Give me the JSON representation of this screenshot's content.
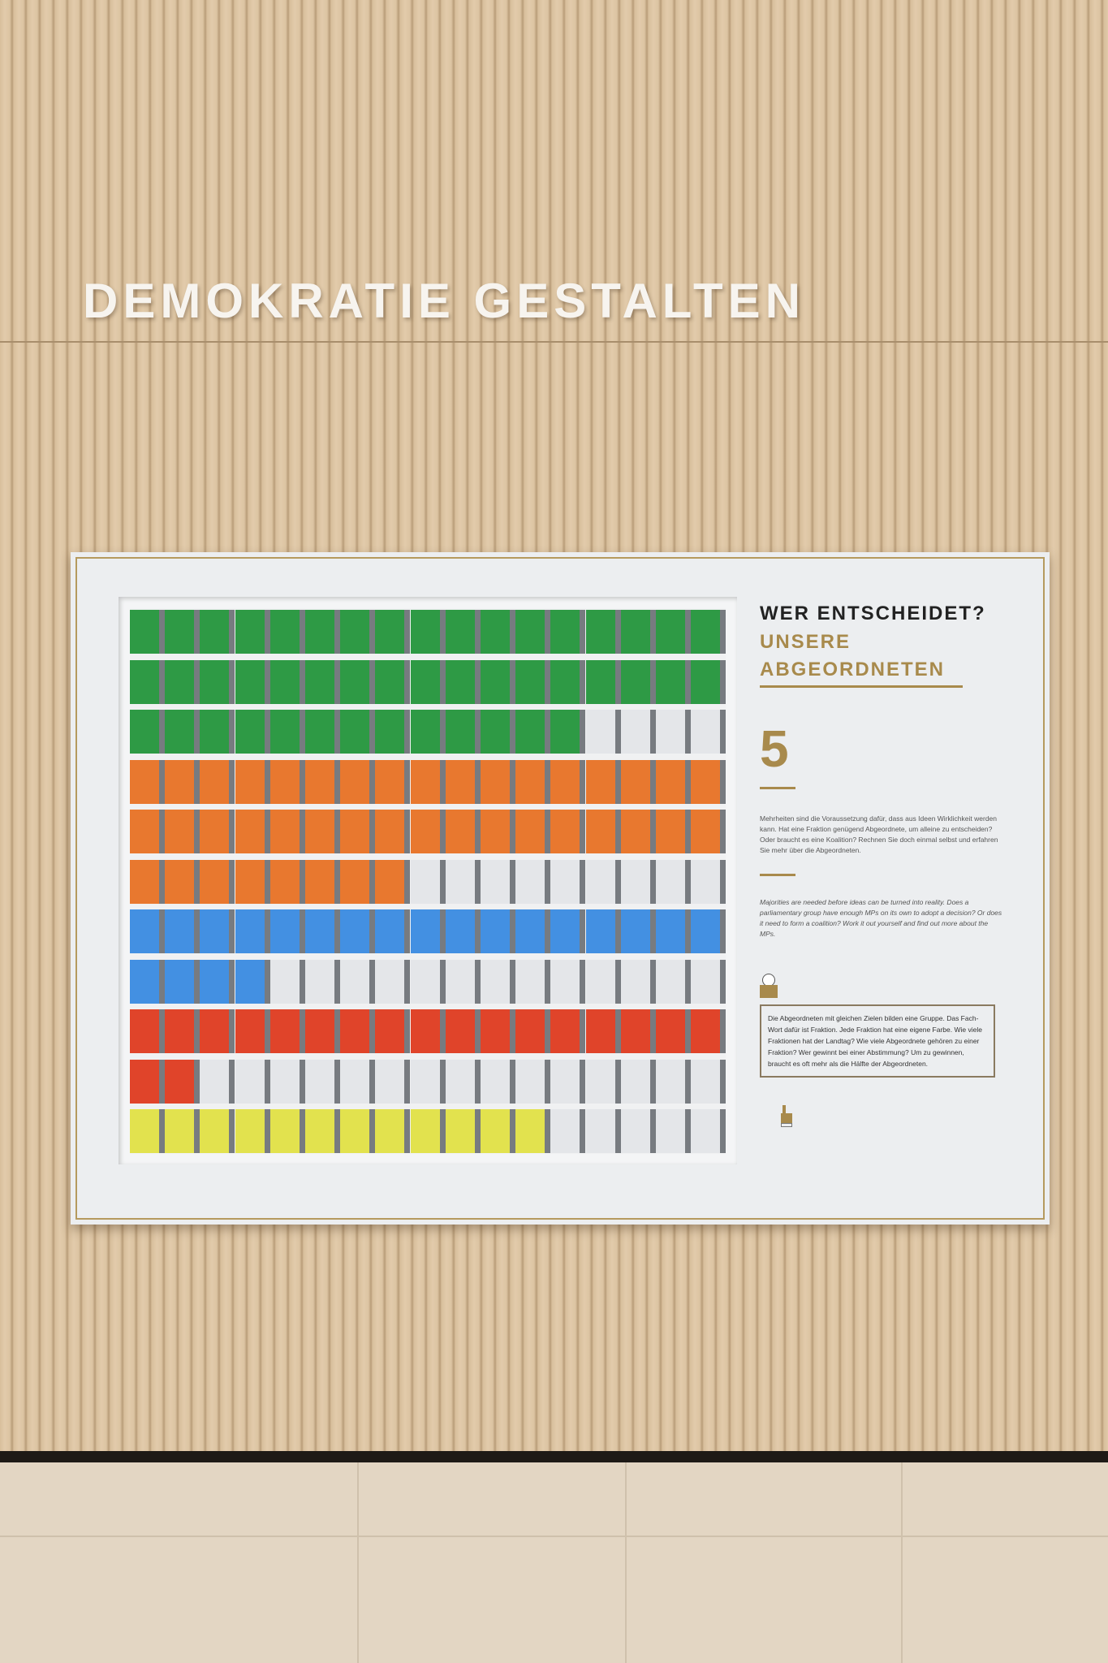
{
  "wall_title": "DEMOKRATIE GESTALTEN",
  "panel": {
    "heading": "WER ENTSCHEIDET?",
    "subheading_1": "UNSERE",
    "subheading_2": "ABGEORDNETEN",
    "station_number": "5",
    "text_de": "Mehrheiten sind die Voraussetzung dafür, dass aus Ideen Wirklichkeit werden kann. Hat eine Fraktion genügend Abgeordnete, um alleine zu entscheiden? Oder braucht es eine Koalition? Rechnen Sie doch einmal selbst und erfahren Sie mehr über die Abgeordneten.",
    "text_en": "Majorities are needed before ideas can be turned into reality. Does a parliamentary group have enough MPs on its own to adopt a decision? Or does it need to form a coalition? Work it out yourself and find out more about the MPs.",
    "easy_language_text": "Die Abgeordneten mit gleichen Zielen bilden eine Gruppe. Das Fach-Wort dafür ist Fraktion. Jede Fraktion hat eine eigene Farbe. Wie viele Fraktionen hat der Landtag? Wie viele Abgeordnete gehören zu einer Fraktion? Wer gewinnt bei einer Abstimmung? Um zu gewinnen, braucht es oft mehr als die Hälfte der Abgeordneten."
  },
  "seat_grid": {
    "columns": 17,
    "rows": 11,
    "empty_color": "#e4e6e9",
    "groups": [
      {
        "color": "#2e9a45",
        "seats": 47,
        "start_row": 0
      },
      {
        "color": "#e8782f",
        "seats": 42,
        "start_row": 3
      },
      {
        "color": "#4390e2",
        "seats": 21,
        "start_row": 6
      },
      {
        "color": "#e0442a",
        "seats": 19,
        "start_row": 8
      },
      {
        "color": "#e2e24e",
        "seats": 12,
        "start_row": 10
      }
    ]
  },
  "accent_color": "#a88a4c"
}
